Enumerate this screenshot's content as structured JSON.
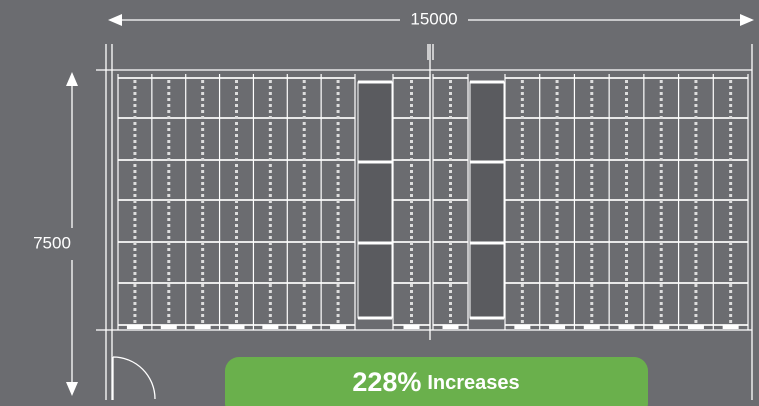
{
  "dimensions": {
    "width": 15000,
    "height": 7500
  },
  "badge": {
    "value": "228%",
    "label": "Increases"
  }
}
